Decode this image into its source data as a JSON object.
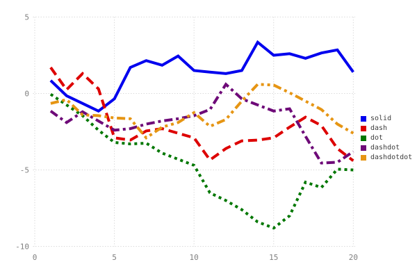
{
  "chart_data": {
    "type": "line",
    "title": "",
    "xlabel": "",
    "ylabel": "",
    "x": [
      1,
      2,
      3,
      4,
      5,
      6,
      7,
      8,
      9,
      10,
      11,
      12,
      13,
      14,
      15,
      16,
      17,
      18,
      19,
      20
    ],
    "series": [
      {
        "name": "solid",
        "color": "#0000ee",
        "dash_style": "solid",
        "values": [
          0.85,
          -0.15,
          -0.65,
          -1.15,
          -0.35,
          1.7,
          2.15,
          1.85,
          2.45,
          1.5,
          1.4,
          1.3,
          1.5,
          3.35,
          2.5,
          2.6,
          2.3,
          2.65,
          2.85,
          1.4
        ]
      },
      {
        "name": "dash",
        "color": "#dd0000",
        "dash_style": "dash",
        "values": [
          1.7,
          0.25,
          1.3,
          0.3,
          -2.9,
          -3.05,
          -2.45,
          -2.3,
          -2.6,
          -2.9,
          -4.35,
          -3.6,
          -3.1,
          -3.05,
          -2.9,
          -2.2,
          -1.55,
          -2.1,
          -3.6,
          -4.4
        ]
      },
      {
        "name": "dot",
        "color": "#007700",
        "dash_style": "dot",
        "values": [
          -0.05,
          -0.75,
          -1.45,
          -2.4,
          -3.2,
          -3.3,
          -3.25,
          -3.9,
          -4.3,
          -4.7,
          -6.5,
          -7.0,
          -7.6,
          -8.4,
          -8.8,
          -8.0,
          -5.8,
          -6.15,
          -4.95,
          -5.0
        ]
      },
      {
        "name": "dashdot",
        "color": "#6e0a78",
        "dash_style": "dashdot",
        "values": [
          -1.15,
          -1.9,
          -1.2,
          -1.8,
          -2.4,
          -2.3,
          -2.0,
          -1.8,
          -1.65,
          -1.45,
          -1.05,
          0.6,
          -0.35,
          -0.75,
          -1.15,
          -1.0,
          -2.8,
          -4.55,
          -4.5,
          -3.8
        ]
      },
      {
        "name": "dashdotdot",
        "color": "#e69513",
        "dash_style": "dashdotdot",
        "values": [
          -0.65,
          -0.4,
          -1.4,
          -1.45,
          -1.6,
          -1.65,
          -2.9,
          -2.2,
          -1.9,
          -1.25,
          -2.15,
          -1.7,
          -0.5,
          0.6,
          0.55,
          0.05,
          -0.5,
          -1.05,
          -2.0,
          -2.6
        ]
      }
    ],
    "x_ticks": [
      0,
      5,
      10,
      15,
      20
    ],
    "y_ticks": [
      5,
      0,
      -5,
      -10
    ],
    "xlim": [
      0,
      20
    ],
    "ylim": [
      -10,
      5
    ],
    "grid": true,
    "grid_color": "#d6d6d6",
    "tick_label_color": "#808080",
    "legend_position": "right",
    "legend": {
      "items": [
        {
          "label": "solid"
        },
        {
          "label": "dash"
        },
        {
          "label": "dot"
        },
        {
          "label": "dashdot"
        },
        {
          "label": "dashdotdot"
        }
      ]
    }
  }
}
